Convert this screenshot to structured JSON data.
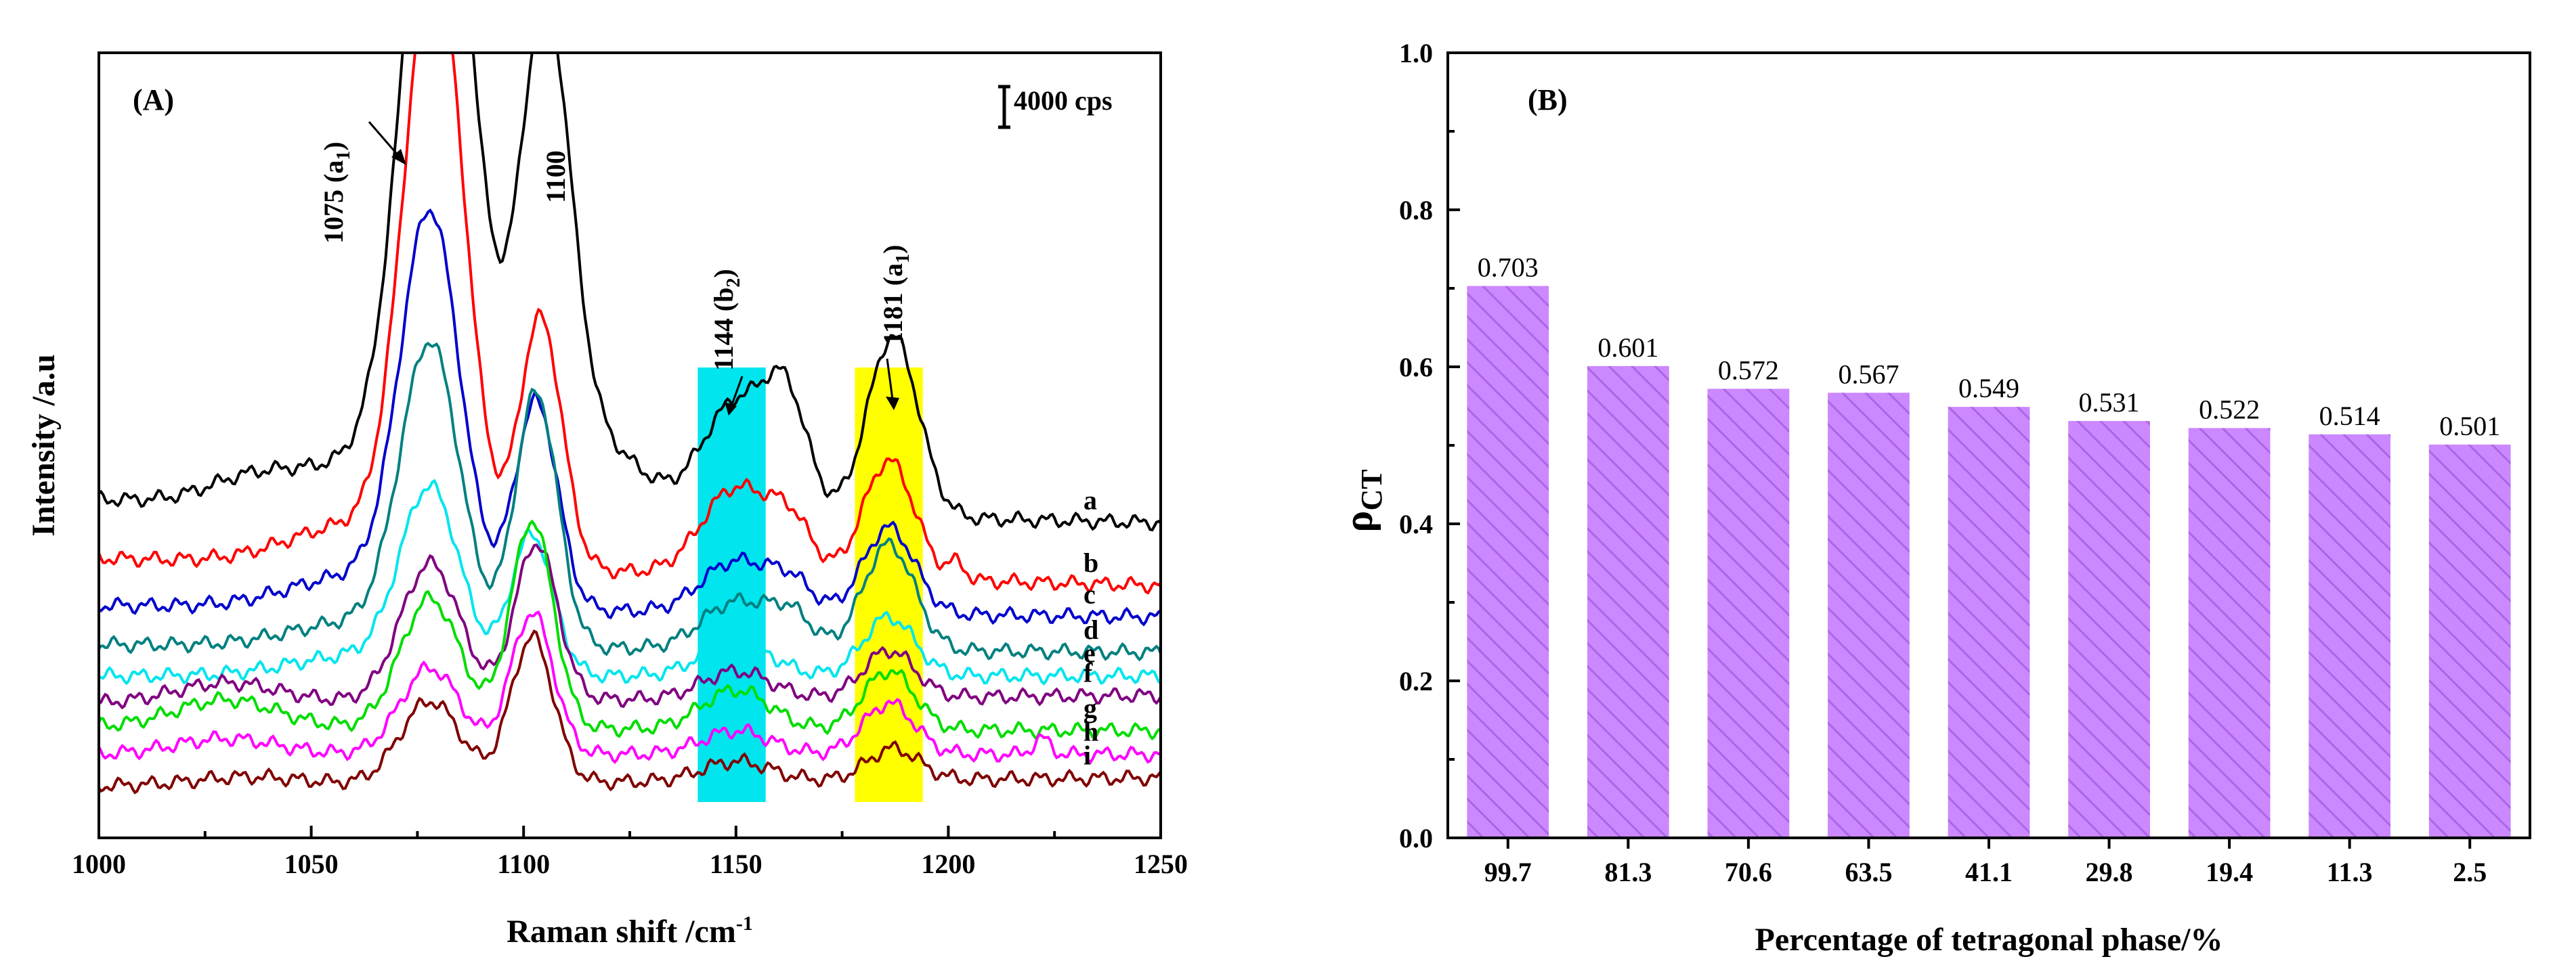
{
  "chart_data": [
    {
      "type": "line",
      "panel_label": "(A)",
      "xlabel": "Raman shift /cm",
      "xlabel_superscript": "-1",
      "ylabel": "Intensity /a.u",
      "xlim": [
        1000,
        1250
      ],
      "x_ticks": [
        "1000",
        "1050",
        "1100",
        "1150",
        "1200",
        "1250"
      ],
      "scale_bar_label": "4000 cps",
      "highlight_bands": [
        {
          "from": 1141,
          "to": 1157,
          "color": "#00e5ee"
        },
        {
          "from": 1178,
          "to": 1194,
          "color": "#ffff00"
        }
      ],
      "annotations": [
        {
          "text": "1075 (a",
          "sub": "1",
          "tail": ")"
        },
        {
          "text": "1100",
          "sub": "",
          "tail": ""
        },
        {
          "text": "1144 (b",
          "sub": "2",
          "tail": ")"
        },
        {
          "text": "1181 (a",
          "sub": "1",
          "tail": ")"
        }
      ],
      "series": [
        {
          "name": "a",
          "color": "#000000",
          "baseline": 0.0,
          "left": 7.8,
          "right": 7.2,
          "peaks": [
            [
              1080,
              18.8,
              8
            ],
            [
              1105,
              12.2,
              6
            ],
            [
              1150,
              2.8,
              8
            ],
            [
              1162,
              2.6,
              5
            ],
            [
              1187,
              4.6,
              6
            ],
            [
              1060,
              1.0,
              15
            ],
            [
              1118,
              1.6,
              10
            ],
            [
              1035,
              0.5,
              10
            ]
          ]
        },
        {
          "name": "b",
          "color": "#ff0000",
          "baseline": 0.0,
          "left": 6.3,
          "right": 5.6,
          "peaks": [
            [
              1079,
              15.4,
              7
            ],
            [
              1104,
              6.4,
              5
            ],
            [
              1150,
              2.2,
              8
            ],
            [
              1163,
              1.2,
              5
            ],
            [
              1186,
              3.0,
              6
            ],
            [
              1060,
              1.0,
              15
            ],
            [
              1202,
              0.4,
              2
            ]
          ]
        },
        {
          "name": "c",
          "color": "#0000cc",
          "baseline": 0.0,
          "left": 5.1,
          "right": 4.8,
          "peaks": [
            [
              1078,
              9.8,
              7
            ],
            [
              1103,
              5.3,
              5
            ],
            [
              1150,
              1.3,
              8
            ],
            [
              1163,
              0.7,
              5
            ],
            [
              1186,
              2.2,
              6
            ],
            [
              1060,
              0.8,
              15
            ]
          ]
        },
        {
          "name": "d",
          "color": "#008080",
          "baseline": 0.0,
          "left": 4.1,
          "right": 3.9,
          "peaks": [
            [
              1078,
              7.5,
              7
            ],
            [
              1103,
              6.5,
              5
            ],
            [
              1150,
              1.2,
              8
            ],
            [
              1163,
              0.8,
              5
            ],
            [
              1186,
              2.7,
              6
            ],
            [
              1060,
              0.6,
              15
            ]
          ]
        },
        {
          "name": "e",
          "color": "#00e5ee",
          "baseline": 0.0,
          "left": 3.3,
          "right": 3.3,
          "peaks": [
            [
              1078,
              4.6,
              7
            ],
            [
              1102,
              3.6,
              5
            ],
            [
              1150,
              0.9,
              8
            ],
            [
              1186,
              1.5,
              6
            ],
            [
              1060,
              0.5,
              15
            ]
          ]
        },
        {
          "name": "f",
          "color": "#800080",
          "baseline": 0.0,
          "left": 2.6,
          "right": 2.8,
          "peaks": [
            [
              1078,
              3.5,
              7
            ],
            [
              1103,
              4.0,
              5
            ],
            [
              1150,
              0.7,
              8
            ],
            [
              1186,
              1.2,
              6
            ],
            [
              1030,
              0.5,
              12
            ]
          ]
        },
        {
          "name": "g",
          "color": "#00dd00",
          "baseline": 0.0,
          "left": 2.0,
          "right": 1.9,
          "peaks": [
            [
              1078,
              3.3,
              7
            ],
            [
              1102,
              5.3,
              5
            ],
            [
              1150,
              1.0,
              8
            ],
            [
              1186,
              1.5,
              6
            ],
            [
              1030,
              0.7,
              12
            ]
          ]
        },
        {
          "name": "h",
          "color": "#ff00ff",
          "baseline": 0.0,
          "left": 1.3,
          "right": 1.3,
          "peaks": [
            [
              1078,
              2.2,
              7
            ],
            [
              1102,
              3.6,
              5
            ],
            [
              1150,
              0.6,
              8
            ],
            [
              1186,
              1.3,
              6
            ],
            [
              1030,
              0.4,
              12
            ],
            [
              1222,
              0.4,
              2
            ]
          ]
        },
        {
          "name": "i",
          "color": "#800000",
          "baseline": 0.0,
          "left": 0.5,
          "right": 0.7,
          "peaks": [
            [
              1078,
              2.1,
              7
            ],
            [
              1102,
              3.7,
              5
            ],
            [
              1150,
              0.5,
              8
            ],
            [
              1187,
              0.8,
              6
            ],
            [
              1035,
              0.2,
              12
            ]
          ]
        }
      ]
    },
    {
      "type": "bar",
      "panel_label": "(B)",
      "xlabel": "Percentage of tetragonal phase/%",
      "ylabel": "ρ",
      "ylabel_sub": "CT",
      "ylim": [
        0,
        1.0
      ],
      "y_ticks": [
        "0.0",
        "0.2",
        "0.4",
        "0.6",
        "0.8",
        "1.0"
      ],
      "categories": [
        "99.7",
        "81.3",
        "70.6",
        "63.5",
        "41.1",
        "29.8",
        "19.4",
        "11.3",
        "2.5"
      ],
      "values": [
        0.703,
        0.601,
        0.572,
        0.567,
        0.549,
        0.531,
        0.522,
        0.514,
        0.501
      ],
      "value_labels": [
        "0.703",
        "0.601",
        "0.572",
        "0.567",
        "0.549",
        "0.531",
        "0.522",
        "0.514",
        "0.501"
      ],
      "bar_color": "#cc88ff",
      "hatch_color": "#ab66e8"
    }
  ]
}
